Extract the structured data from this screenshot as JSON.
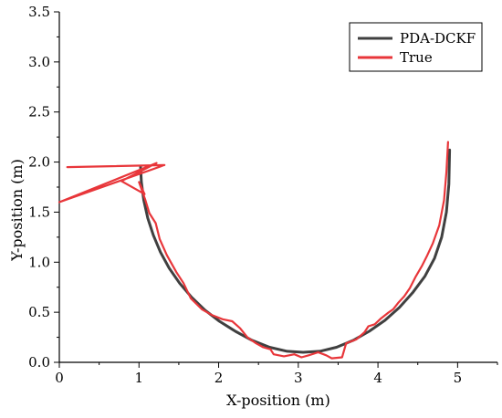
{
  "chart_data": {
    "type": "line",
    "xlabel": "X-position (m)",
    "ylabel": "Y-position (m)",
    "xlim": [
      0,
      5.5
    ],
    "ylim": [
      0,
      3.5
    ],
    "xticks": [
      0,
      1,
      2,
      3,
      4,
      5
    ],
    "xtick_labels": [
      "0",
      "1",
      "2",
      "3",
      "4",
      "5"
    ],
    "yticks": [
      0.0,
      0.5,
      1.0,
      1.5,
      2.0,
      2.5,
      3.0,
      3.5
    ],
    "ytick_labels": [
      "0.0",
      "0.5",
      "1.0",
      "1.5",
      "2.0",
      "2.5",
      "3.0",
      "3.5"
    ],
    "grid": false,
    "legend": "top-right",
    "series": [
      {
        "name": "PDA-DCKF",
        "color": "#404040",
        "x": [
          1.02,
          1.03,
          1.06,
          1.11,
          1.18,
          1.27,
          1.38,
          1.51,
          1.66,
          1.83,
          2.01,
          2.21,
          2.42,
          2.64,
          2.86,
          3.06,
          3.27,
          3.48,
          3.69,
          3.89,
          4.09,
          4.27,
          4.44,
          4.59,
          4.71,
          4.8,
          4.86,
          4.89,
          4.9
        ],
        "y": [
          1.95,
          1.8,
          1.62,
          1.44,
          1.27,
          1.1,
          0.94,
          0.79,
          0.65,
          0.52,
          0.41,
          0.31,
          0.22,
          0.15,
          0.11,
          0.1,
          0.11,
          0.15,
          0.22,
          0.31,
          0.42,
          0.55,
          0.7,
          0.86,
          1.04,
          1.25,
          1.5,
          1.78,
          2.12
        ]
      },
      {
        "name": "True",
        "color": "#e8363a",
        "x": [
          0.1,
          1.32,
          0.0,
          1.22,
          0.78,
          1.07,
          1.0,
          1.08,
          1.13,
          1.21,
          1.26,
          1.35,
          1.47,
          1.56,
          1.65,
          1.79,
          1.92,
          2.05,
          2.17,
          2.27,
          2.36,
          2.47,
          2.56,
          2.65,
          2.69,
          2.82,
          2.95,
          3.04,
          3.13,
          3.25,
          3.35,
          3.42,
          3.55,
          3.6,
          3.73,
          3.83,
          3.88,
          3.96,
          4.04,
          4.12,
          4.19,
          4.26,
          4.33,
          4.4,
          4.47,
          4.55,
          4.62,
          4.69,
          4.77,
          4.83,
          4.86,
          4.88
        ],
        "y": [
          1.95,
          1.97,
          1.6,
          1.99,
          1.81,
          1.68,
          1.8,
          1.62,
          1.49,
          1.39,
          1.23,
          1.07,
          0.9,
          0.79,
          0.64,
          0.53,
          0.47,
          0.43,
          0.41,
          0.34,
          0.25,
          0.19,
          0.15,
          0.13,
          0.08,
          0.06,
          0.08,
          0.05,
          0.07,
          0.1,
          0.07,
          0.04,
          0.05,
          0.19,
          0.23,
          0.3,
          0.36,
          0.38,
          0.44,
          0.49,
          0.53,
          0.6,
          0.66,
          0.74,
          0.85,
          0.96,
          1.07,
          1.19,
          1.37,
          1.62,
          1.9,
          2.2
        ]
      }
    ]
  }
}
